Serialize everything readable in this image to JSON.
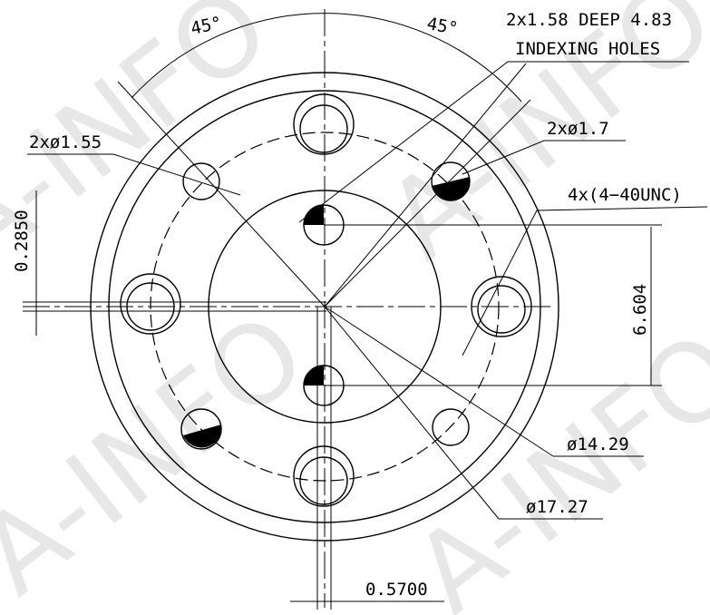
{
  "watermark": "A-INFO",
  "angle_left": "45°",
  "angle_right": "45°",
  "indexing_line1": "2x1.58 DEEP 4.83",
  "indexing_line2": "INDEXING HOLES",
  "hole_17": "2xø1.7",
  "hole_155": "2xø1.55",
  "thread": "4x(4−40UNC)",
  "dim_02850": "0.2850",
  "dim_6604": "6.604",
  "dia_1429": "ø14.29",
  "dia_1727": "ø17.27",
  "dim_05700": "0.5700"
}
